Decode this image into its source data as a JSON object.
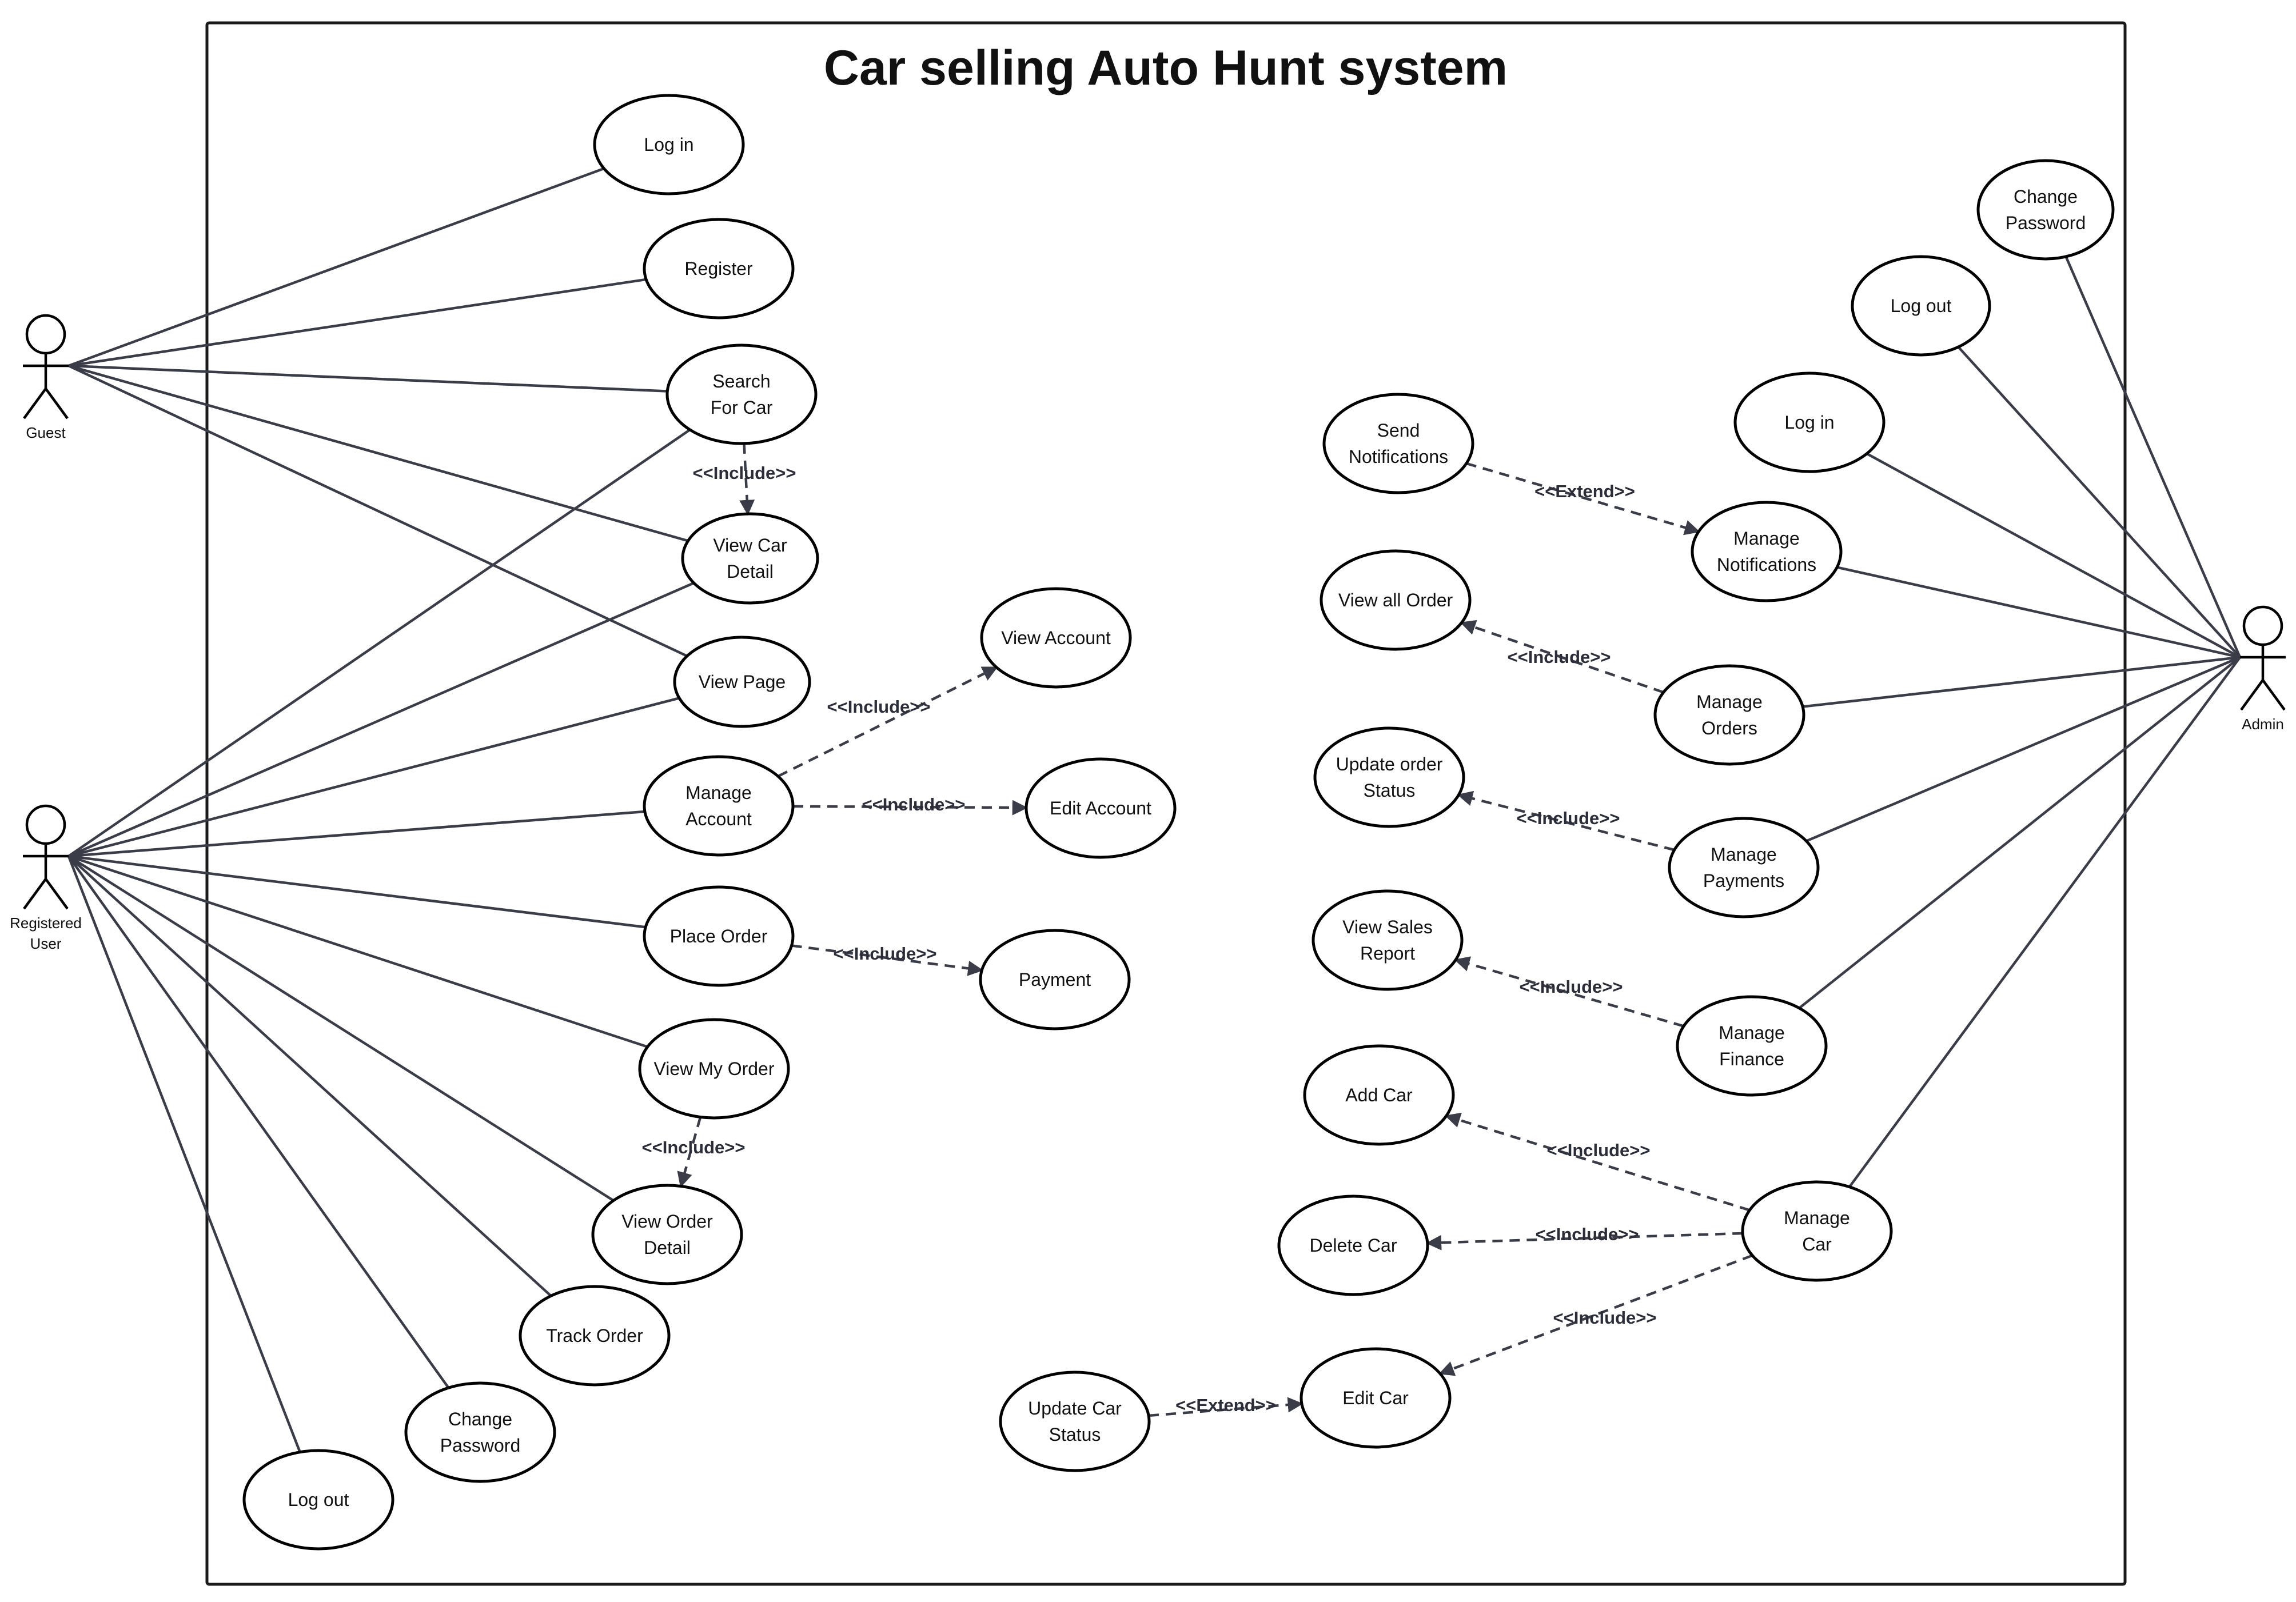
{
  "title": "Car selling Auto Hunt system",
  "colors": {
    "line": "#3a3d48",
    "shape": "#000000",
    "background": "#ffffff",
    "text": "#111111"
  },
  "actors": [
    {
      "id": "guest",
      "name": "guest-actor",
      "lines": [
        "Guest"
      ]
    },
    {
      "id": "reg",
      "name": "registered-user-actor",
      "lines": [
        "Registered",
        "User"
      ]
    },
    {
      "id": "admin",
      "name": "admin-actor",
      "lines": [
        "Admin"
      ]
    }
  ],
  "use_cases": [
    {
      "id": "login_l",
      "name": "use-case-log-in",
      "lines": [
        "Log in"
      ]
    },
    {
      "id": "register",
      "name": "use-case-register",
      "lines": [
        "Register"
      ]
    },
    {
      "id": "search",
      "name": "use-case-search-for-car",
      "lines": [
        "Search",
        "For Car"
      ]
    },
    {
      "id": "viewcar",
      "name": "use-case-view-car-detail",
      "lines": [
        "View Car",
        "Detail"
      ]
    },
    {
      "id": "viewpage",
      "name": "use-case-view-page",
      "lines": [
        "View Page"
      ]
    },
    {
      "id": "manageacc",
      "name": "use-case-manage-account",
      "lines": [
        "Manage",
        "Account"
      ]
    },
    {
      "id": "viewacc",
      "name": "use-case-view-account",
      "lines": [
        "View Account"
      ]
    },
    {
      "id": "editacc",
      "name": "use-case-edit-account",
      "lines": [
        "Edit Account"
      ]
    },
    {
      "id": "placeorder",
      "name": "use-case-place-order",
      "lines": [
        "Place Order"
      ]
    },
    {
      "id": "payment",
      "name": "use-case-payment",
      "lines": [
        "Payment"
      ]
    },
    {
      "id": "viewmyorder",
      "name": "use-case-view-my-order",
      "lines": [
        "View My Order"
      ]
    },
    {
      "id": "vieworderdetail",
      "name": "use-case-view-order-detail",
      "lines": [
        "View Order",
        "Detail"
      ]
    },
    {
      "id": "track",
      "name": "use-case-track-order",
      "lines": [
        "Track Order"
      ]
    },
    {
      "id": "changepw_l",
      "name": "use-case-change-password",
      "lines": [
        "Change",
        "Password"
      ]
    },
    {
      "id": "logout_l",
      "name": "use-case-log-out",
      "lines": [
        "Log out"
      ]
    },
    {
      "id": "changepw_r",
      "name": "use-case-admin-change-password",
      "lines": [
        "Change",
        "Password"
      ]
    },
    {
      "id": "logout_r",
      "name": "use-case-admin-log-out",
      "lines": [
        "Log out"
      ]
    },
    {
      "id": "login_r",
      "name": "use-case-admin-log-in",
      "lines": [
        "Log in"
      ]
    },
    {
      "id": "sendnotif",
      "name": "use-case-send-notifications",
      "lines": [
        "Send",
        "Notifications"
      ]
    },
    {
      "id": "managenotif",
      "name": "use-case-manage-notifications",
      "lines": [
        "Manage",
        "Notifications"
      ]
    },
    {
      "id": "viewallorder",
      "name": "use-case-view-all-order",
      "lines": [
        "View all Order"
      ]
    },
    {
      "id": "manageorders",
      "name": "use-case-manage-orders",
      "lines": [
        "Manage",
        "Orders"
      ]
    },
    {
      "id": "updateorder",
      "name": "use-case-update-order-status",
      "lines": [
        "Update order",
        "Status"
      ]
    },
    {
      "id": "managepay",
      "name": "use-case-manage-payments",
      "lines": [
        "Manage",
        "Payments"
      ]
    },
    {
      "id": "salesreport",
      "name": "use-case-view-sales-report",
      "lines": [
        "View Sales",
        "Report"
      ]
    },
    {
      "id": "managefin",
      "name": "use-case-manage-finance",
      "lines": [
        "Manage",
        "Finance"
      ]
    },
    {
      "id": "addcar",
      "name": "use-case-add-car",
      "lines": [
        "Add Car"
      ]
    },
    {
      "id": "deletecar",
      "name": "use-case-delete-car",
      "lines": [
        "Delete Car"
      ]
    },
    {
      "id": "managecar",
      "name": "use-case-manage-car",
      "lines": [
        "Manage",
        "Car"
      ]
    },
    {
      "id": "editcar",
      "name": "use-case-edit-car",
      "lines": [
        "Edit Car"
      ]
    },
    {
      "id": "updatecarstatus",
      "name": "use-case-update-car-status",
      "lines": [
        "Update Car",
        "Status"
      ]
    }
  ],
  "associations": [
    [
      "guest",
      "login_l"
    ],
    [
      "guest",
      "register"
    ],
    [
      "guest",
      "search"
    ],
    [
      "guest",
      "viewcar"
    ],
    [
      "guest",
      "viewpage"
    ],
    [
      "reg",
      "search"
    ],
    [
      "reg",
      "viewcar"
    ],
    [
      "reg",
      "viewpage"
    ],
    [
      "reg",
      "manageacc"
    ],
    [
      "reg",
      "placeorder"
    ],
    [
      "reg",
      "viewmyorder"
    ],
    [
      "reg",
      "vieworderdetail"
    ],
    [
      "reg",
      "track"
    ],
    [
      "reg",
      "changepw_l"
    ],
    [
      "reg",
      "logout_l"
    ],
    [
      "admin",
      "changepw_r"
    ],
    [
      "admin",
      "logout_r"
    ],
    [
      "admin",
      "login_r"
    ],
    [
      "admin",
      "managenotif"
    ],
    [
      "admin",
      "manageorders"
    ],
    [
      "admin",
      "managepay"
    ],
    [
      "admin",
      "managefin"
    ],
    [
      "admin",
      "managecar"
    ]
  ],
  "dependencies": [
    {
      "from": "search",
      "to": "viewcar",
      "label": "<<Include>>"
    },
    {
      "from": "manageacc",
      "to": "viewacc",
      "label": "<<Include>>"
    },
    {
      "from": "manageacc",
      "to": "editacc",
      "label": "<<Include>>"
    },
    {
      "from": "placeorder",
      "to": "payment",
      "label": "<<Include>>"
    },
    {
      "from": "viewmyorder",
      "to": "vieworderdetail",
      "label": "<<Include>>"
    },
    {
      "from": "sendnotif",
      "to": "managenotif",
      "label": "<<Extend>>"
    },
    {
      "from": "manageorders",
      "to": "viewallorder",
      "label": "<<Include>>"
    },
    {
      "from": "managepay",
      "to": "updateorder",
      "label": "<<Include>>"
    },
    {
      "from": "managefin",
      "to": "salesreport",
      "label": "<<Include>>"
    },
    {
      "from": "managecar",
      "to": "addcar",
      "label": "<<Include>>"
    },
    {
      "from": "managecar",
      "to": "deletecar",
      "label": "<<Include>>"
    },
    {
      "from": "managecar",
      "to": "editcar",
      "label": "<<Include>>"
    },
    {
      "from": "updatecarstatus",
      "to": "editcar",
      "label": "<<Extend>>"
    }
  ]
}
